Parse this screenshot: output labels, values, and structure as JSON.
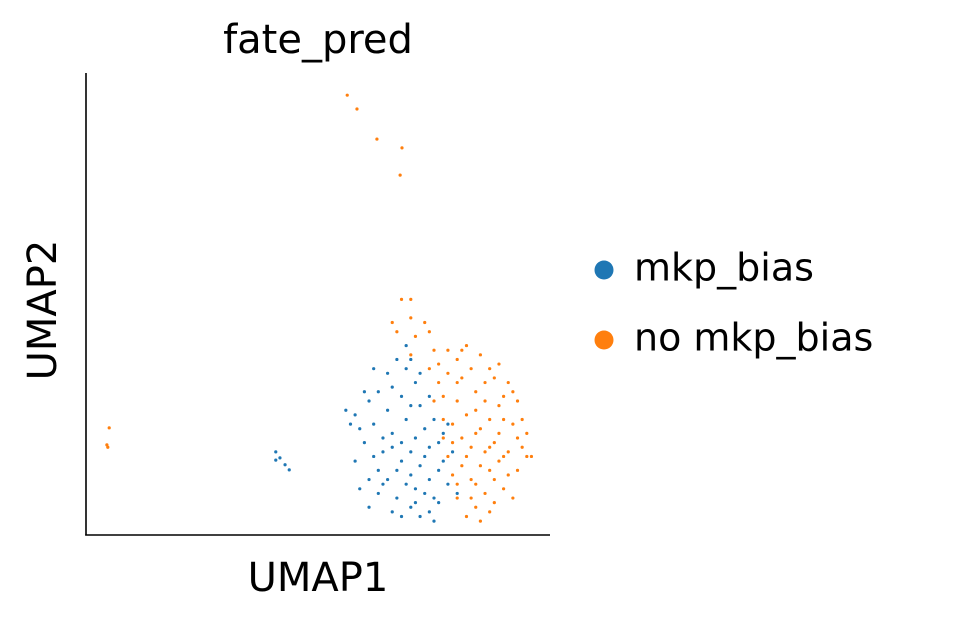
{
  "chart_data": {
    "type": "scatter",
    "title": "fate_pred",
    "xlabel": "UMAP1",
    "ylabel": "UMAP2",
    "xlim": [
      0,
      100
    ],
    "ylim": [
      0,
      100
    ],
    "series": [
      {
        "name": "mkp_bias",
        "color": "#1f77b4",
        "x": [
          70,
          68,
          72,
          66,
          74,
          69,
          71,
          64,
          76,
          67,
          73,
          62,
          75,
          70,
          68,
          72,
          65,
          60,
          58,
          63,
          77,
          78,
          71,
          69,
          66,
          74,
          72,
          67,
          61,
          59,
          56,
          57,
          64,
          70,
          73,
          75,
          77,
          68,
          66,
          62,
          63,
          65,
          71,
          69,
          76,
          74,
          72,
          67,
          79,
          78,
          70,
          61,
          58,
          65,
          63,
          73,
          76,
          75,
          71,
          68,
          66,
          80,
          64,
          60,
          62,
          69,
          70,
          59,
          61,
          74,
          40.9,
          41.8,
          42.9,
          43.8,
          40.9
        ],
        "y": [
          18,
          20,
          15,
          22,
          12,
          25,
          10,
          18,
          20,
          14,
          23,
          24,
          8,
          6,
          30,
          28,
          27,
          20,
          26,
          14,
          16,
          11,
          33,
          36,
          32,
          5,
          4,
          8,
          29,
          23,
          27,
          24,
          11,
          13,
          17,
          25,
          22,
          16,
          19,
          17,
          9,
          12,
          21,
          11,
          14,
          30,
          35,
          38,
          18,
          24,
          28,
          12,
          16,
          35,
          31,
          9,
          7,
          3,
          7,
          4,
          5,
          9,
          21,
          31,
          36,
          41,
          38,
          10,
          6,
          19,
          18,
          16.7,
          15.2,
          14.1,
          16.2
        ]
      },
      {
        "name": "no mkp_bias",
        "color": "#ff7f0e",
        "x": [
          85,
          82,
          88,
          80,
          90,
          84,
          87,
          92,
          79,
          86,
          89,
          83,
          91,
          81,
          94,
          85,
          88,
          80,
          78,
          77,
          93,
          95,
          90,
          84,
          82,
          87,
          86,
          83,
          89,
          91,
          78,
          76,
          92,
          80,
          81,
          84,
          87,
          85,
          83,
          79,
          88,
          90,
          93,
          86,
          82,
          74,
          75,
          76,
          77,
          78,
          80,
          81,
          89,
          92,
          94,
          91,
          88,
          85,
          83,
          86,
          87,
          84,
          82,
          80,
          79,
          90,
          95,
          96,
          93,
          89,
          81,
          84,
          87,
          75,
          77,
          68,
          70,
          66,
          70,
          73,
          67,
          71,
          74,
          70,
          56.3,
          58.4,
          62.7,
          68.1,
          67.7,
          5,
          4.5,
          4.7
        ],
        "y": [
          23,
          26,
          20,
          29,
          17,
          31,
          14,
          24,
          20,
          9,
          28,
          36,
          13,
          15,
          19,
          39,
          34,
          38,
          35,
          30,
          29,
          17,
          10,
          6,
          4,
          5,
          18,
          12,
          22,
          33,
          40,
          37,
          8,
          11,
          21,
          27,
          25,
          15,
          19,
          24,
          12,
          25,
          21,
          33,
          41,
          36,
          40,
          33,
          25,
          17,
          8,
          34,
          37,
          31,
          25,
          18,
          7,
          3,
          8,
          29,
          36,
          22,
          17,
          33,
          13,
          30,
          22,
          17,
          14,
          16,
          40,
          11,
          19,
          29,
          21,
          51,
          51,
          46,
          47,
          46,
          44,
          43,
          44,
          39,
          95.2,
          92.2,
          85.7,
          83.8,
          77.9,
          23.2,
          19.5,
          19
        ]
      }
    ]
  }
}
